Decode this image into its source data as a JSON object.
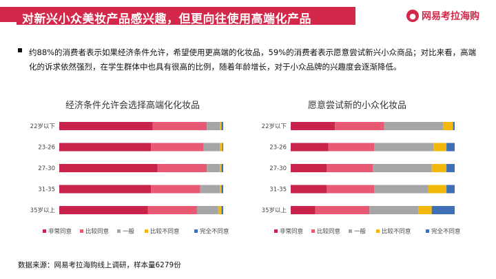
{
  "header": {
    "title": "对新兴小众美妆产品感兴趣，但更向往使用高端化产品",
    "logo_text": "网易考拉海购",
    "logo_icon": "koala-face-icon",
    "accent_color": "#d4284a"
  },
  "summary": "约88%的消费者表示如果经济条件允许，希望使用更高端的化妆品，59%的消费者表示愿意尝试新兴小众商品；对比来看，高端化的诉求依然强烈，在学生群体中也具有很高的比例，随着年龄增长，对于小众品牌的兴趣度会逐渐降低。",
  "source": "数据来源：网易考拉海购线上调研，样本量6279份",
  "chart_data": [
    {
      "type": "bar",
      "orientation": "horizontal",
      "stacked": "percent",
      "title": "经济条件允许会选择高端化化妆品",
      "categories": [
        "22岁以下",
        "23-26",
        "27-30",
        "31-35",
        "35岁以上"
      ],
      "series": [
        {
          "name": "非常同意",
          "color": "#c8234a",
          "values": [
            57,
            56,
            60,
            56,
            54
          ]
        },
        {
          "name": "比较同意",
          "color": "#e85a74",
          "values": [
            33,
            32,
            30,
            30,
            30
          ]
        },
        {
          "name": "一般",
          "color": "#a6a6a6",
          "values": [
            8,
            10,
            8,
            12,
            13
          ]
        },
        {
          "name": "比较不同意",
          "color": "#f2b90c",
          "values": [
            1,
            1.5,
            1,
            1,
            2
          ]
        },
        {
          "name": "完全不同意",
          "color": "#3f6fb5",
          "values": [
            1,
            0.5,
            1,
            1,
            1
          ]
        }
      ],
      "legend": "bottom"
    },
    {
      "type": "bar",
      "orientation": "horizontal",
      "stacked": "percent",
      "title": "愿意尝试新的小众化妆品",
      "categories": [
        "22岁以下",
        "23-26",
        "27-30",
        "31-35",
        "35岁以上"
      ],
      "series": [
        {
          "name": "非常同意",
          "color": "#c8234a",
          "values": [
            27,
            23,
            22,
            22,
            15
          ]
        },
        {
          "name": "比较同意",
          "color": "#e85a74",
          "values": [
            30,
            28,
            28,
            29,
            33
          ]
        },
        {
          "name": "一般",
          "color": "#a6a6a6",
          "values": [
            36,
            36,
            36,
            33,
            30
          ]
        },
        {
          "name": "比较不同意",
          "color": "#f2b90c",
          "values": [
            6,
            8,
            9,
            11,
            8
          ]
        },
        {
          "name": "完全不同意",
          "color": "#3f6fb5",
          "values": [
            1,
            5,
            5,
            5,
            14
          ]
        }
      ],
      "legend": "bottom"
    }
  ]
}
